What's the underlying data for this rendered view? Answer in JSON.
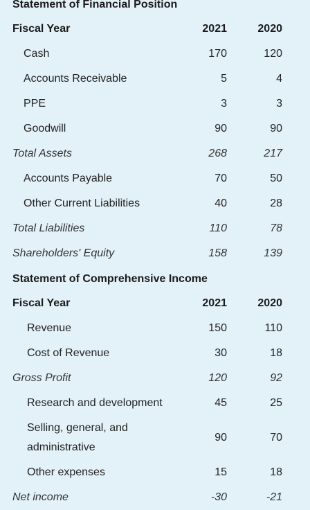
{
  "balance_sheet": {
    "title": "Statement of Financial Position",
    "header": {
      "label": "Fiscal Year",
      "y1": "2021",
      "y2": "2020"
    },
    "rows": [
      {
        "label": "Cash",
        "v2021": "170",
        "v2020": "120"
      },
      {
        "label": "Accounts Receivable",
        "v2021": "5",
        "v2020": "4"
      },
      {
        "label": "PPE",
        "v2021": "3",
        "v2020": "3"
      },
      {
        "label": "Goodwill",
        "v2021": "90",
        "v2020": "90"
      },
      {
        "label": "Total Assets",
        "v2021": "268",
        "v2020": "217"
      },
      {
        "label": "Accounts Payable",
        "v2021": "70",
        "v2020": "50"
      },
      {
        "label": "Other Current Liabilities",
        "v2021": "40",
        "v2020": "28"
      },
      {
        "label": "Total Liabilities",
        "v2021": "110",
        "v2020": "78"
      },
      {
        "label": "Shareholders' Equity",
        "v2021": "158",
        "v2020": "139"
      }
    ]
  },
  "income_statement": {
    "title": "Statement of Comprehensive Income",
    "header": {
      "label": "Fiscal Year",
      "y1": "2021",
      "y2": "2020"
    },
    "rows": [
      {
        "label": "Revenue",
        "v2021": "150",
        "v2020": "110"
      },
      {
        "label": "Cost of Revenue",
        "v2021": "30",
        "v2020": "18"
      },
      {
        "label": "Gross Profit",
        "v2021": "120",
        "v2020": "92"
      },
      {
        "label": "Research and development",
        "v2021": "45",
        "v2020": "25"
      },
      {
        "label": "Selling, general, and administrative",
        "v2021": "90",
        "v2020": "70"
      },
      {
        "label": "Other expenses",
        "v2021": "15",
        "v2020": "18"
      },
      {
        "label": "Net income",
        "v2021": "-30",
        "v2020": "-21"
      }
    ]
  }
}
